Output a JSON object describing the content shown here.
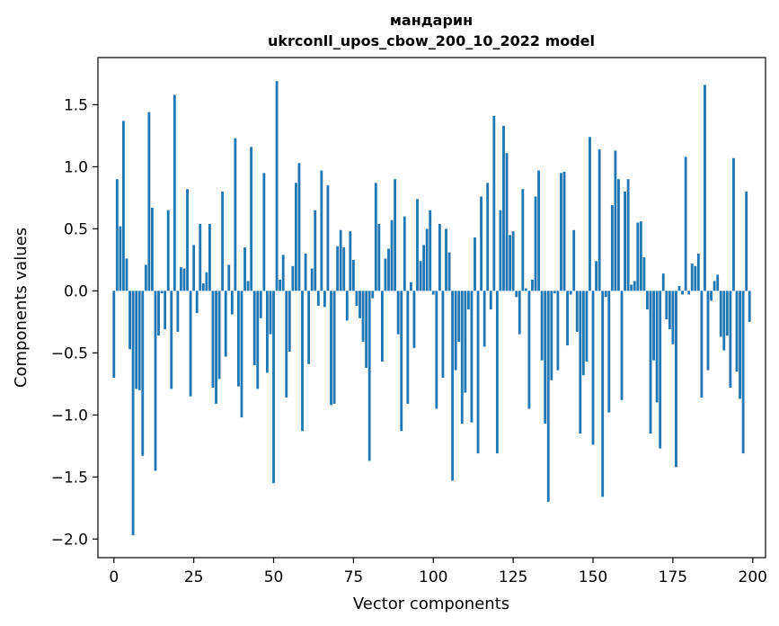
{
  "chart_data": {
    "type": "bar",
    "title": [
      "мандарин",
      "ukrconll_upos_cbow_200_10_2022 model"
    ],
    "xlabel": "Vector components",
    "ylabel": "Components values",
    "xlim": [
      -5,
      204
    ],
    "ylim": [
      -2.15,
      1.88
    ],
    "xticks": [
      0,
      25,
      50,
      75,
      100,
      125,
      150,
      175,
      200
    ],
    "yticks": [
      -2.0,
      -1.5,
      -1.0,
      -0.5,
      0.0,
      0.5,
      1.0,
      1.5
    ],
    "ytick_labels": [
      "−2.0",
      "−1.5",
      "−1.0",
      "−0.5",
      "0.0",
      "0.5",
      "1.0",
      "1.5"
    ],
    "grid": false,
    "bar_color": "#1f77b4",
    "x": "0..199",
    "values": [
      -0.7,
      0.9,
      0.52,
      1.37,
      0.26,
      -0.47,
      -1.97,
      -0.79,
      -0.8,
      -1.33,
      0.21,
      1.44,
      0.67,
      -1.45,
      -0.36,
      -0.02,
      -0.31,
      0.65,
      -0.79,
      1.58,
      -0.33,
      0.19,
      0.18,
      0.82,
      -0.85,
      0.37,
      -0.18,
      0.54,
      0.06,
      0.15,
      0.54,
      -0.78,
      -0.91,
      -0.71,
      0.8,
      -0.53,
      0.21,
      -0.19,
      1.23,
      -0.77,
      -1.02,
      0.35,
      0.08,
      1.16,
      -0.6,
      -0.79,
      -0.22,
      0.95,
      -0.66,
      -0.35,
      -1.55,
      1.69,
      0.09,
      0.29,
      -0.86,
      -0.49,
      0.2,
      0.87,
      1.03,
      -1.13,
      0.3,
      -0.59,
      0.18,
      0.65,
      -0.12,
      0.97,
      -0.13,
      0.85,
      -0.92,
      -0.91,
      0.36,
      0.49,
      0.35,
      -0.24,
      0.48,
      0.25,
      -0.12,
      -0.22,
      -0.41,
      -0.62,
      -1.37,
      -0.06,
      0.87,
      0.54,
      -0.57,
      0.26,
      0.34,
      0.57,
      0.9,
      -0.35,
      -1.13,
      0.6,
      -0.91,
      0.07,
      -0.46,
      0.74,
      0.24,
      0.37,
      0.5,
      0.65,
      -0.03,
      -0.95,
      0.54,
      -0.7,
      0.5,
      0.31,
      -1.53,
      -0.64,
      -0.41,
      -1.07,
      -0.82,
      -0.15,
      -1.06,
      0.43,
      -1.31,
      0.76,
      -0.45,
      0.87,
      -0.15,
      1.41,
      -1.31,
      0.65,
      1.33,
      1.11,
      0.45,
      0.48,
      -0.05,
      -0.35,
      0.82,
      0.02,
      -0.95,
      0.09,
      0.76,
      0.97,
      -0.56,
      -1.07,
      -1.7,
      -0.72,
      -0.02,
      -0.64,
      0.95,
      0.96,
      -0.44,
      -0.03,
      0.49,
      -0.33,
      -1.15,
      -0.68,
      -0.57,
      1.24,
      -1.24,
      0.24,
      1.14,
      -1.66,
      -0.05,
      -0.98,
      0.69,
      1.13,
      0.9,
      -0.88,
      0.8,
      0.9,
      0.05,
      0.08,
      0.55,
      0.56,
      0.27,
      -0.15,
      -1.15,
      -0.56,
      -0.9,
      -1.27,
      0.14,
      -0.23,
      -0.31,
      -0.43,
      -1.42,
      0.04,
      -0.03,
      1.08,
      -0.03,
      0.22,
      0.2,
      0.3,
      -0.86,
      1.66,
      -0.64,
      -0.08,
      0.08,
      0.13,
      -0.37,
      -0.48,
      -0.36,
      -0.78,
      1.07,
      -0.65,
      -0.87,
      -1.31,
      0.8,
      -0.25
    ]
  }
}
